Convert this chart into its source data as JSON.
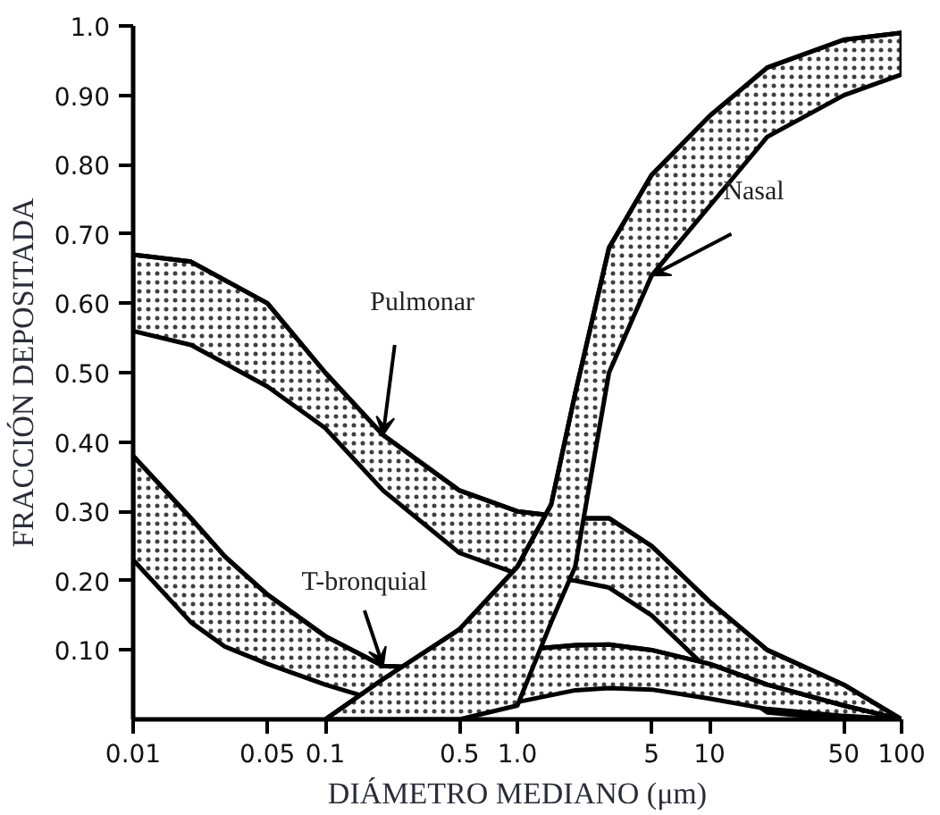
{
  "chart_data": {
    "type": "line",
    "xlabel": "DIÁMETRO MEDIANO (μm)",
    "ylabel": "FRACCIÓN DEPOSITADA",
    "log": "x",
    "grid": false,
    "xlim": [
      0.01,
      100
    ],
    "ylim": [
      0,
      1.0
    ],
    "xticks": [
      0.01,
      0.05,
      0.1,
      0.5,
      {
        "value": 1,
        "label": "1.0"
      },
      5,
      10,
      50,
      100
    ],
    "yticks": [
      {
        "value": 0.1,
        "label": "0.10"
      },
      {
        "value": 0.2,
        "label": "0.20"
      },
      {
        "value": 0.3,
        "label": "0.30"
      },
      {
        "value": 0.4,
        "label": "0.40"
      },
      {
        "value": 0.5,
        "label": "0.50"
      },
      {
        "value": 0.6,
        "label": "0.60"
      },
      {
        "value": 0.7,
        "label": "0.70"
      },
      {
        "value": 0.8,
        "label": "0.80"
      },
      {
        "value": 0.9,
        "label": "0.90"
      },
      {
        "value": 1.0,
        "label": "1.0"
      }
    ],
    "series": [
      {
        "name": "Pulmonar",
        "color": "#000000",
        "x": [
          0.01,
          0.02,
          0.05,
          0.1,
          0.2,
          0.5,
          1,
          2,
          3,
          5,
          10,
          20,
          50,
          100
        ],
        "values": [
          0.67,
          0.66,
          0.6,
          0.5,
          0.41,
          0.33,
          0.3,
          0.29,
          0.29,
          0.25,
          0.17,
          0.1,
          0.05,
          0.0
        ],
        "upper": [
          0.67,
          0.66,
          0.6,
          0.5,
          0.41,
          0.33,
          0.3,
          0.29,
          0.29,
          0.25,
          0.17,
          0.1,
          0.05,
          0.0
        ],
        "lower": [
          0.56,
          0.54,
          0.48,
          0.42,
          0.33,
          0.24,
          0.21,
          0.2,
          0.19,
          0.15,
          0.07,
          0.01,
          0.0,
          0.0
        ]
      },
      {
        "name": "T-bronquial",
        "color": "#000000",
        "x": [
          0.01,
          0.02,
          0.03,
          0.05,
          0.1,
          0.2,
          0.3,
          0.5,
          1,
          2,
          3,
          5,
          10,
          20,
          50,
          100
        ],
        "values": [
          0.38,
          0.29,
          0.235,
          0.18,
          0.12,
          0.077,
          0.075,
          0.085,
          0.1,
          0.107,
          0.108,
          0.1,
          0.08,
          0.05,
          0.02,
          0.0
        ],
        "upper": [
          0.38,
          0.29,
          0.235,
          0.18,
          0.12,
          0.077,
          0.075,
          0.085,
          0.1,
          0.107,
          0.108,
          0.1,
          0.08,
          0.05,
          0.02,
          0.0
        ],
        "lower": [
          0.23,
          0.14,
          0.105,
          0.08,
          0.05,
          0.025,
          0.02,
          0.017,
          0.025,
          0.042,
          0.045,
          0.043,
          0.03,
          0.015,
          0.005,
          0.0
        ]
      },
      {
        "name": "Nasal",
        "color": "#000000",
        "x": [
          0.1,
          0.2,
          0.5,
          1,
          1.5,
          2,
          3,
          5,
          10,
          20,
          50,
          100
        ],
        "values": [
          0.0,
          0.058,
          0.13,
          0.22,
          0.31,
          0.47,
          0.68,
          0.785,
          0.87,
          0.94,
          0.98,
          0.99
        ],
        "upper": [
          0.0,
          0.058,
          0.13,
          0.22,
          0.31,
          0.47,
          0.68,
          0.785,
          0.87,
          0.94,
          0.98,
          0.99
        ],
        "lower": [
          0.0,
          0.0,
          0.0,
          0.02,
          0.14,
          0.22,
          0.5,
          0.64,
          0.74,
          0.84,
          0.9,
          0.93
        ]
      }
    ]
  }
}
